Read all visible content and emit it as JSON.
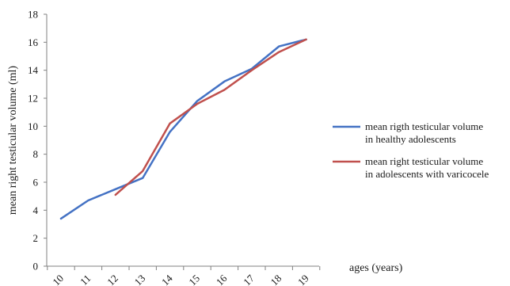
{
  "chart_data": {
    "type": "line",
    "title": "",
    "xlabel": "ages (years)",
    "ylabel": "mean right testicular volume (ml)",
    "categories": [
      "10",
      "11",
      "12",
      "13",
      "14",
      "15",
      "16",
      "17",
      "18",
      "19"
    ],
    "ylim": [
      0,
      18
    ],
    "yticks": [
      "0",
      "2",
      "4",
      "6",
      "8",
      "10",
      "12",
      "14",
      "16",
      "18"
    ],
    "grid": false,
    "legend_position": "right",
    "series": [
      {
        "name": "mean rigth testicular volume in healthy adolescents",
        "name_lines": [
          "mean rigth testicular volume",
          "in healthy adolescents"
        ],
        "color": "#4472c4",
        "values": [
          3.4,
          4.7,
          5.5,
          6.3,
          9.6,
          11.8,
          13.2,
          14.1,
          15.7,
          16.2
        ]
      },
      {
        "name": "mean right testicular volume in adolescents with varicocele",
        "name_lines": [
          "mean right testicular volume",
          "in adolescents with varicocele"
        ],
        "color": "#c0504d",
        "values": [
          null,
          null,
          5.1,
          6.8,
          10.2,
          11.6,
          12.6,
          14.0,
          15.3,
          16.2
        ]
      }
    ]
  }
}
